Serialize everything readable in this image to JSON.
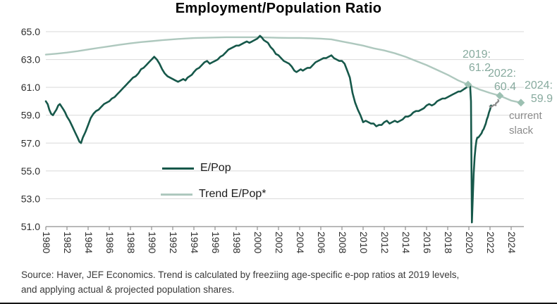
{
  "title": "Employment/Population Ratio",
  "colors": {
    "epop_line": "#16584a",
    "trend_line": "#aec8be",
    "marker": "#9cc0b2",
    "annotation_text": "#87aa9e",
    "slack_text": "#8b8b8b",
    "gridline": "#d9d9d9",
    "axis": "#8f8f8f",
    "tick_label": "#2e2e2e",
    "title_text": "#000000",
    "source_text": "#3a3a3a"
  },
  "legend": {
    "items": [
      {
        "label": "E/Pop"
      },
      {
        "label": "Trend E/Pop*"
      }
    ]
  },
  "annotations": {
    "callouts": [
      {
        "label": "2019:",
        "value": "61.2"
      },
      {
        "label": "2022:",
        "value": "60.4"
      },
      {
        "label": "2024:",
        "value": "59.9"
      }
    ],
    "slack_line1": "current",
    "slack_line2": "slack",
    "brace_glyph": "}"
  },
  "source": {
    "line1": "Source: Haver, JEF Economics. Trend is calculated by freeziing age-specific e-pop ratios at 2019 levels,",
    "line2": "and applying actual & projected population shares."
  },
  "chart_data": {
    "type": "line",
    "title": "Employment/Population Ratio",
    "xlabel": "",
    "ylabel": "",
    "xlim": [
      1980,
      2025.2
    ],
    "ylim": [
      51,
      65
    ],
    "grid": "horizontal",
    "legend_position": "center-left-inside",
    "x_ticks": [
      1980,
      1982,
      1984,
      1986,
      1988,
      1990,
      1992,
      1994,
      1996,
      1998,
      2000,
      2002,
      2004,
      2006,
      2008,
      2010,
      2012,
      2014,
      2016,
      2018,
      2020,
      2022,
      2024
    ],
    "y_ticks": [
      65.0,
      63.0,
      61.0,
      59.0,
      57.0,
      55.0,
      53.0,
      51.0
    ],
    "series": [
      {
        "name": "Trend E/Pop*",
        "color": "#aec8be",
        "width": 2.4,
        "points": [
          [
            1980,
            63.35
          ],
          [
            1981,
            63.42
          ],
          [
            1982,
            63.5
          ],
          [
            1983,
            63.6
          ],
          [
            1984,
            63.72
          ],
          [
            1985,
            63.84
          ],
          [
            1986,
            63.95
          ],
          [
            1987,
            64.06
          ],
          [
            1988,
            64.16
          ],
          [
            1989,
            64.25
          ],
          [
            1990,
            64.32
          ],
          [
            1991,
            64.39
          ],
          [
            1992,
            64.45
          ],
          [
            1993,
            64.5
          ],
          [
            1994,
            64.54
          ],
          [
            1995,
            64.56
          ],
          [
            1996,
            64.58
          ],
          [
            1997,
            64.6
          ],
          [
            1998,
            64.6
          ],
          [
            1999,
            64.6
          ],
          [
            2000,
            64.6
          ],
          [
            2001,
            64.58
          ],
          [
            2002,
            64.56
          ],
          [
            2003,
            64.55
          ],
          [
            2004,
            64.55
          ],
          [
            2005,
            64.53
          ],
          [
            2006,
            64.5
          ],
          [
            2007,
            64.45
          ],
          [
            2008,
            64.3
          ],
          [
            2009,
            64.15
          ],
          [
            2010,
            64.0
          ],
          [
            2011,
            63.8
          ],
          [
            2012,
            63.65
          ],
          [
            2013,
            63.45
          ],
          [
            2014,
            63.2
          ],
          [
            2015,
            62.9
          ],
          [
            2016,
            62.6
          ],
          [
            2017,
            62.25
          ],
          [
            2018,
            61.9
          ],
          [
            2019,
            61.5
          ],
          [
            2019.92,
            61.2
          ],
          [
            2021,
            60.85
          ],
          [
            2022,
            60.6
          ],
          [
            2022.92,
            60.4
          ],
          [
            2024,
            60.05
          ],
          [
            2024.92,
            59.9
          ]
        ],
        "markers": [
          {
            "x": 2019.92,
            "y": 61.2,
            "label_year": "2019:",
            "label_value": "61.2"
          },
          {
            "x": 2022.92,
            "y": 60.4,
            "label_year": "2022:",
            "label_value": "60.4"
          },
          {
            "x": 2024.92,
            "y": 59.9,
            "label_year": "2024:",
            "label_value": "59.9"
          }
        ]
      },
      {
        "name": "E/Pop",
        "color": "#16584a",
        "width": 2.6,
        "points": [
          [
            1980.0,
            60.0
          ],
          [
            1980.17,
            59.8
          ],
          [
            1980.33,
            59.4
          ],
          [
            1980.5,
            59.1
          ],
          [
            1980.67,
            59.0
          ],
          [
            1980.83,
            59.2
          ],
          [
            1981.0,
            59.4
          ],
          [
            1981.17,
            59.7
          ],
          [
            1981.33,
            59.8
          ],
          [
            1981.5,
            59.6
          ],
          [
            1981.67,
            59.4
          ],
          [
            1981.83,
            59.2
          ],
          [
            1982.0,
            58.9
          ],
          [
            1982.25,
            58.6
          ],
          [
            1982.5,
            58.2
          ],
          [
            1982.75,
            57.8
          ],
          [
            1983.0,
            57.4
          ],
          [
            1983.17,
            57.1
          ],
          [
            1983.33,
            57.0
          ],
          [
            1983.5,
            57.4
          ],
          [
            1983.75,
            57.8
          ],
          [
            1984.0,
            58.3
          ],
          [
            1984.25,
            58.8
          ],
          [
            1984.5,
            59.1
          ],
          [
            1984.75,
            59.3
          ],
          [
            1985.0,
            59.4
          ],
          [
            1985.25,
            59.6
          ],
          [
            1985.5,
            59.8
          ],
          [
            1985.75,
            59.9
          ],
          [
            1986.0,
            60.0
          ],
          [
            1986.25,
            60.2
          ],
          [
            1986.5,
            60.3
          ],
          [
            1986.75,
            60.5
          ],
          [
            1987.0,
            60.7
          ],
          [
            1987.25,
            60.9
          ],
          [
            1987.5,
            61.1
          ],
          [
            1987.75,
            61.3
          ],
          [
            1988.0,
            61.5
          ],
          [
            1988.25,
            61.7
          ],
          [
            1988.5,
            61.8
          ],
          [
            1988.75,
            62.0
          ],
          [
            1989.0,
            62.3
          ],
          [
            1989.25,
            62.4
          ],
          [
            1989.5,
            62.6
          ],
          [
            1989.75,
            62.8
          ],
          [
            1990.0,
            63.0
          ],
          [
            1990.25,
            63.2
          ],
          [
            1990.5,
            63.0
          ],
          [
            1990.75,
            62.7
          ],
          [
            1991.0,
            62.3
          ],
          [
            1991.25,
            62.0
          ],
          [
            1991.5,
            61.8
          ],
          [
            1991.75,
            61.7
          ],
          [
            1992.0,
            61.6
          ],
          [
            1992.25,
            61.5
          ],
          [
            1992.5,
            61.4
          ],
          [
            1992.75,
            61.5
          ],
          [
            1993.0,
            61.6
          ],
          [
            1993.2,
            61.5
          ],
          [
            1993.4,
            61.7
          ],
          [
            1993.6,
            61.8
          ],
          [
            1993.8,
            61.9
          ],
          [
            1994.0,
            62.1
          ],
          [
            1994.25,
            62.3
          ],
          [
            1994.5,
            62.4
          ],
          [
            1994.75,
            62.6
          ],
          [
            1995.0,
            62.8
          ],
          [
            1995.25,
            62.9
          ],
          [
            1995.5,
            62.7
          ],
          [
            1995.75,
            62.8
          ],
          [
            1996.0,
            62.9
          ],
          [
            1996.25,
            63.0
          ],
          [
            1996.5,
            63.2
          ],
          [
            1996.75,
            63.3
          ],
          [
            1997.0,
            63.5
          ],
          [
            1997.25,
            63.7
          ],
          [
            1997.5,
            63.8
          ],
          [
            1997.75,
            63.9
          ],
          [
            1998.0,
            64.0
          ],
          [
            1998.25,
            64.0
          ],
          [
            1998.5,
            64.1
          ],
          [
            1998.75,
            64.2
          ],
          [
            1999.0,
            64.3
          ],
          [
            1999.25,
            64.2
          ],
          [
            1999.5,
            64.3
          ],
          [
            1999.75,
            64.4
          ],
          [
            2000.0,
            64.5
          ],
          [
            2000.25,
            64.7
          ],
          [
            2000.4,
            64.6
          ],
          [
            2000.6,
            64.4
          ],
          [
            2000.8,
            64.3
          ],
          [
            2001.0,
            64.2
          ],
          [
            2001.25,
            63.9
          ],
          [
            2001.5,
            63.7
          ],
          [
            2001.75,
            63.4
          ],
          [
            2002.0,
            63.3
          ],
          [
            2002.25,
            63.1
          ],
          [
            2002.5,
            62.9
          ],
          [
            2002.75,
            62.8
          ],
          [
            2003.0,
            62.7
          ],
          [
            2003.25,
            62.5
          ],
          [
            2003.5,
            62.2
          ],
          [
            2003.7,
            62.1
          ],
          [
            2003.9,
            62.2
          ],
          [
            2004.1,
            62.3
          ],
          [
            2004.3,
            62.2
          ],
          [
            2004.5,
            62.3
          ],
          [
            2004.75,
            62.4
          ],
          [
            2005.0,
            62.4
          ],
          [
            2005.25,
            62.6
          ],
          [
            2005.5,
            62.8
          ],
          [
            2005.75,
            62.9
          ],
          [
            2006.0,
            63.0
          ],
          [
            2006.25,
            63.1
          ],
          [
            2006.5,
            63.1
          ],
          [
            2006.75,
            63.2
          ],
          [
            2007.0,
            63.3
          ],
          [
            2007.25,
            63.1
          ],
          [
            2007.5,
            63.0
          ],
          [
            2007.75,
            62.9
          ],
          [
            2008.0,
            62.9
          ],
          [
            2008.25,
            62.7
          ],
          [
            2008.5,
            62.2
          ],
          [
            2008.75,
            61.7
          ],
          [
            2009.0,
            60.6
          ],
          [
            2009.25,
            59.9
          ],
          [
            2009.5,
            59.4
          ],
          [
            2009.75,
            59.0
          ],
          [
            2010.0,
            58.5
          ],
          [
            2010.25,
            58.6
          ],
          [
            2010.5,
            58.5
          ],
          [
            2010.75,
            58.4
          ],
          [
            2011.0,
            58.4
          ],
          [
            2011.25,
            58.2
          ],
          [
            2011.5,
            58.3
          ],
          [
            2011.75,
            58.3
          ],
          [
            2012.0,
            58.5
          ],
          [
            2012.25,
            58.6
          ],
          [
            2012.5,
            58.4
          ],
          [
            2012.75,
            58.5
          ],
          [
            2013.0,
            58.6
          ],
          [
            2013.25,
            58.5
          ],
          [
            2013.5,
            58.6
          ],
          [
            2013.75,
            58.7
          ],
          [
            2014.0,
            58.9
          ],
          [
            2014.25,
            58.9
          ],
          [
            2014.5,
            59.0
          ],
          [
            2014.75,
            59.2
          ],
          [
            2015.0,
            59.3
          ],
          [
            2015.25,
            59.3
          ],
          [
            2015.5,
            59.4
          ],
          [
            2015.75,
            59.5
          ],
          [
            2016.0,
            59.7
          ],
          [
            2016.25,
            59.8
          ],
          [
            2016.5,
            59.7
          ],
          [
            2016.75,
            59.8
          ],
          [
            2017.0,
            60.0
          ],
          [
            2017.25,
            60.1
          ],
          [
            2017.5,
            60.2
          ],
          [
            2017.75,
            60.2
          ],
          [
            2018.0,
            60.3
          ],
          [
            2018.25,
            60.4
          ],
          [
            2018.5,
            60.5
          ],
          [
            2018.75,
            60.6
          ],
          [
            2019.0,
            60.7
          ],
          [
            2019.2,
            60.7
          ],
          [
            2019.4,
            60.8
          ],
          [
            2019.6,
            60.9
          ],
          [
            2019.8,
            61.0
          ],
          [
            2020.0,
            61.2
          ],
          [
            2020.12,
            61.1
          ],
          [
            2020.2,
            60.0
          ],
          [
            2020.29,
            51.3
          ],
          [
            2020.37,
            53.0
          ],
          [
            2020.45,
            54.8
          ],
          [
            2020.55,
            56.0
          ],
          [
            2020.63,
            56.7
          ],
          [
            2020.72,
            57.2
          ],
          [
            2020.8,
            57.4
          ],
          [
            2020.9,
            57.4
          ],
          [
            2021.0,
            57.5
          ],
          [
            2021.1,
            57.6
          ],
          [
            2021.2,
            57.7
          ],
          [
            2021.3,
            57.9
          ],
          [
            2021.4,
            58.0
          ],
          [
            2021.5,
            58.2
          ],
          [
            2021.6,
            58.4
          ],
          [
            2021.7,
            58.7
          ],
          [
            2021.8,
            58.9
          ],
          [
            2021.9,
            59.2
          ],
          [
            2022.0,
            59.4
          ],
          [
            2022.1,
            59.7
          ]
        ]
      }
    ]
  }
}
